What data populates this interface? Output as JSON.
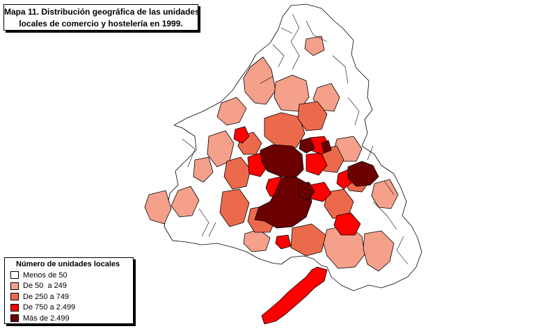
{
  "title": {
    "line1": "Mapa 11. Distribución geográfica de las unidades",
    "line2": "locales de comercio y hostelería en 1999."
  },
  "legend": {
    "title": "Número de unidades locales",
    "items": [
      {
        "label": "Menos de 50",
        "color": "#ffffff"
      },
      {
        "label": "De 50  a 249",
        "color": "#f4a08a"
      },
      {
        "label": "De 250 a 749",
        "color": "#ec6a4c"
      },
      {
        "label": "De 750 a 2.499",
        "color": "#ff0000"
      },
      {
        "label": "Más de 2.499",
        "color": "#6b0000"
      }
    ]
  },
  "colors": {
    "border": "#000000",
    "background": "#ffffff"
  }
}
